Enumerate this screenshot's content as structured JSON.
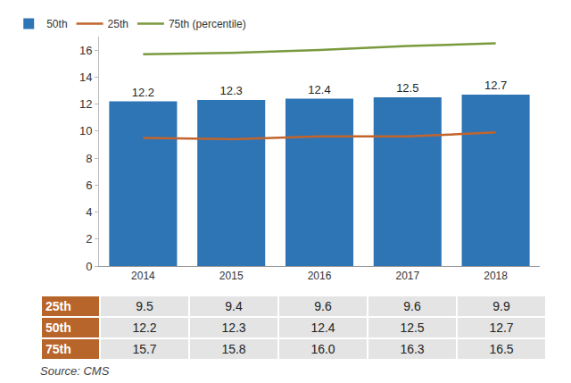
{
  "chart_data": {
    "type": "bar",
    "categories": [
      "2014",
      "2015",
      "2016",
      "2017",
      "2018"
    ],
    "series": [
      {
        "name": "50th",
        "type": "bar",
        "color": "#2e75b6",
        "data_labels": true,
        "values": [
          12.2,
          12.3,
          12.4,
          12.5,
          12.7
        ]
      },
      {
        "name": "25th",
        "type": "line",
        "color": "#c2652c",
        "values": [
          9.5,
          9.4,
          9.6,
          9.6,
          9.9
        ]
      },
      {
        "name": "75th (percentile)",
        "type": "line",
        "color": "#7a9a3e",
        "values": [
          15.7,
          15.8,
          16.0,
          16.3,
          16.5
        ]
      }
    ],
    "ylim": [
      0,
      17
    ],
    "yticks": [
      0,
      2,
      4,
      6,
      8,
      10,
      12,
      14,
      16
    ],
    "grid": false,
    "legend": "top left"
  },
  "table": {
    "rows": [
      [
        "25th",
        "9.5",
        "9.4",
        "9.6",
        "9.6",
        "9.9"
      ],
      [
        "50th",
        "12.2",
        "12.3",
        "12.4",
        "12.5",
        "12.7"
      ],
      [
        "75th",
        "15.7",
        "15.8",
        "16.0",
        "16.3",
        "16.5"
      ]
    ]
  },
  "source": "Source: CMS"
}
